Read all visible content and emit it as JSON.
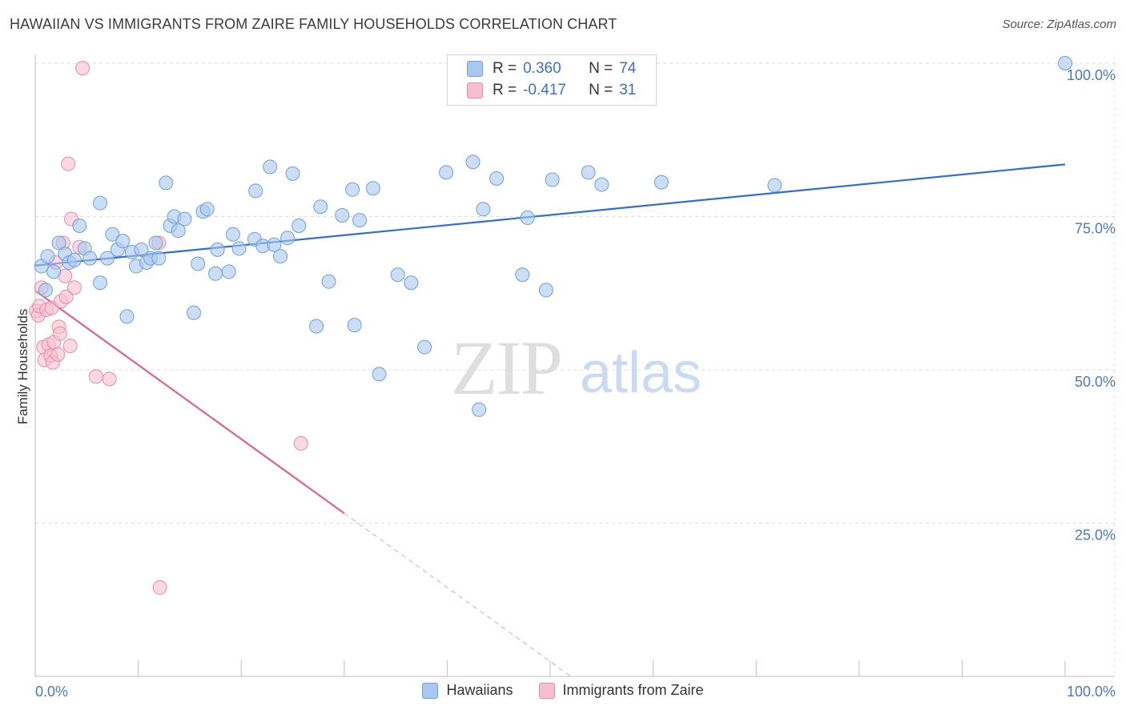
{
  "header": {
    "title": "HAWAIIAN VS IMMIGRANTS FROM ZAIRE FAMILY HOUSEHOLDS CORRELATION CHART",
    "source": "Source: ZipAtlas.com"
  },
  "watermark": {
    "zip": "ZIP",
    "atlas": "atlas"
  },
  "legend_top": {
    "rows": [
      {
        "r_label": "R =",
        "r_value": "0.360",
        "n_label": "N =",
        "n_value": "74"
      },
      {
        "r_label": "R =",
        "r_value": "-0.417",
        "n_label": "N =",
        "n_value": "31"
      }
    ]
  },
  "legend_bottom": [
    "Hawaiians",
    "Immigrants from Zaire"
  ],
  "colors": {
    "blue_fill": "#a9c8f0",
    "blue_stroke": "#6f9fdd",
    "blue_line": "#2f6fd0",
    "pink_fill": "#f6bfd0",
    "pink_stroke": "#e98aa9",
    "pink_line": "#e0628e",
    "grid": "#dcdcdc",
    "axis_label": "#4a78c6"
  },
  "chart_data": {
    "type": "scatter",
    "title": "HAWAIIAN VS IMMIGRANTS FROM ZAIRE FAMILY HOUSEHOLDS CORRELATION CHART",
    "xlabel": "",
    "ylabel": "Family Households",
    "xlim": [
      0,
      100
    ],
    "ylim": [
      0,
      100
    ],
    "x_tick_labels": [
      "0.0%",
      "100.0%"
    ],
    "y_tick_labels": [
      "25.0%",
      "50.0%",
      "75.0%",
      "100.0%"
    ],
    "y_ticks": [
      25,
      50,
      75,
      100
    ],
    "grid": true,
    "legend_position": "bottom",
    "series": [
      {
        "name": "Hawaiians",
        "r": 0.36,
        "n": 74,
        "trend": {
          "x": [
            0,
            100
          ],
          "y": [
            67.0,
            83.5
          ],
          "style": "solid"
        },
        "points": [
          [
            0.6,
            66.9
          ],
          [
            1.0,
            63.0
          ],
          [
            1.2,
            68.5
          ],
          [
            1.8,
            66.0
          ],
          [
            2.3,
            70.7
          ],
          [
            2.9,
            68.9
          ],
          [
            3.3,
            67.5
          ],
          [
            3.8,
            67.9
          ],
          [
            4.3,
            73.5
          ],
          [
            4.8,
            69.8
          ],
          [
            5.3,
            68.2
          ],
          [
            6.3,
            64.2
          ],
          [
            6.3,
            77.2
          ],
          [
            7.0,
            68.2
          ],
          [
            7.5,
            72.1
          ],
          [
            8.0,
            69.6
          ],
          [
            8.5,
            71.0
          ],
          [
            8.9,
            58.7
          ],
          [
            9.4,
            69.2
          ],
          [
            9.8,
            66.9
          ],
          [
            10.3,
            69.6
          ],
          [
            10.8,
            67.5
          ],
          [
            11.2,
            68.2
          ],
          [
            11.7,
            70.7
          ],
          [
            12.0,
            68.2
          ],
          [
            12.7,
            80.5
          ],
          [
            13.1,
            73.5
          ],
          [
            13.5,
            75.0
          ],
          [
            13.9,
            72.7
          ],
          [
            14.5,
            74.6
          ],
          [
            15.4,
            59.3
          ],
          [
            15.8,
            67.3
          ],
          [
            16.3,
            75.8
          ],
          [
            16.7,
            76.2
          ],
          [
            17.5,
            65.7
          ],
          [
            17.7,
            69.6
          ],
          [
            18.8,
            66.0
          ],
          [
            19.2,
            72.1
          ],
          [
            19.8,
            69.8
          ],
          [
            21.3,
            71.3
          ],
          [
            21.4,
            79.2
          ],
          [
            22.1,
            70.2
          ],
          [
            22.8,
            83.1
          ],
          [
            23.2,
            70.4
          ],
          [
            23.8,
            68.5
          ],
          [
            24.5,
            71.5
          ],
          [
            25.0,
            82.0
          ],
          [
            25.6,
            73.5
          ],
          [
            27.3,
            57.1
          ],
          [
            27.7,
            76.6
          ],
          [
            28.5,
            64.4
          ],
          [
            29.8,
            75.2
          ],
          [
            30.8,
            79.4
          ],
          [
            31.0,
            57.3
          ],
          [
            31.5,
            74.4
          ],
          [
            32.8,
            79.6
          ],
          [
            33.4,
            49.3
          ],
          [
            35.2,
            65.5
          ],
          [
            36.5,
            64.2
          ],
          [
            37.8,
            53.7
          ],
          [
            39.9,
            82.2
          ],
          [
            42.5,
            83.9
          ],
          [
            43.1,
            43.5
          ],
          [
            43.5,
            76.2
          ],
          [
            44.8,
            81.2
          ],
          [
            47.3,
            65.5
          ],
          [
            47.8,
            74.8
          ],
          [
            49.6,
            63.0
          ],
          [
            50.2,
            81.0
          ],
          [
            53.7,
            82.2
          ],
          [
            55.0,
            80.2
          ],
          [
            60.8,
            80.6
          ],
          [
            71.8,
            80.1
          ],
          [
            100.0,
            100.0
          ]
        ]
      },
      {
        "name": "Immigrants from Zaire",
        "r": -0.417,
        "n": 31,
        "trend": {
          "x": [
            0,
            30,
            52
          ],
          "y": [
            62.9,
            26.6,
            0
          ],
          "style": "solid-then-dashed"
        },
        "points": [
          [
            0.1,
            59.6
          ],
          [
            0.3,
            58.9
          ],
          [
            0.4,
            60.4
          ],
          [
            0.6,
            63.4
          ],
          [
            0.8,
            53.7
          ],
          [
            0.9,
            51.6
          ],
          [
            1.1,
            59.8
          ],
          [
            1.3,
            54.1
          ],
          [
            1.5,
            52.3
          ],
          [
            1.6,
            60.1
          ],
          [
            1.7,
            51.2
          ],
          [
            1.8,
            54.5
          ],
          [
            2.0,
            67.5
          ],
          [
            2.2,
            52.5
          ],
          [
            2.3,
            57.0
          ],
          [
            2.4,
            55.9
          ],
          [
            2.5,
            61.2
          ],
          [
            2.7,
            70.7
          ],
          [
            2.9,
            65.3
          ],
          [
            3.0,
            61.9
          ],
          [
            3.2,
            83.6
          ],
          [
            3.4,
            53.9
          ],
          [
            3.5,
            74.6
          ],
          [
            3.8,
            63.4
          ],
          [
            4.3,
            70.0
          ],
          [
            4.6,
            99.2
          ],
          [
            5.9,
            48.9
          ],
          [
            7.2,
            48.5
          ],
          [
            12.0,
            70.7
          ],
          [
            12.1,
            14.5
          ],
          [
            25.8,
            38.0
          ]
        ]
      }
    ]
  }
}
